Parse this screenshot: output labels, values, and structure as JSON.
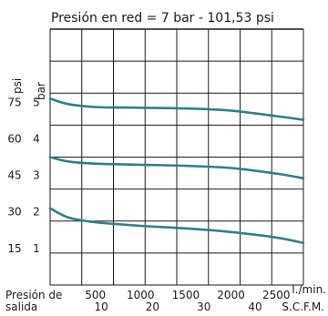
{
  "chart_data": {
    "type": "line",
    "title": "Presión en red = 7 bar - 101,53 psi",
    "xlabel_left": [
      "Presión de",
      "salida"
    ],
    "x_unit_primary": "l./min.",
    "x_unit_secondary": "S.C.F.M.",
    "y_unit_psi": "psi",
    "y_unit_bar": "bar",
    "x_range": [
      0,
      2800
    ],
    "y_range_bar": [
      0,
      7.0
    ],
    "x_ticks_primary": [
      {
        "value": 500,
        "label": "500"
      },
      {
        "value": 1000,
        "label": "1000"
      },
      {
        "value": 1500,
        "label": "1500"
      },
      {
        "value": 2000,
        "label": "2000"
      },
      {
        "value": 2500,
        "label": "2500"
      }
    ],
    "x_ticks_secondary": [
      {
        "value": 283,
        "label": "10"
      },
      {
        "value": 566,
        "label": "20"
      },
      {
        "value": 850,
        "label": "30"
      },
      {
        "value": 1133,
        "label": "40"
      }
    ],
    "y_ticks": [
      {
        "bar": 1,
        "bar_label": "1",
        "psi_label": "15"
      },
      {
        "bar": 2,
        "bar_label": "2",
        "psi_label": "30"
      },
      {
        "bar": 3,
        "bar_label": "3",
        "psi_label": "45"
      },
      {
        "bar": 4,
        "bar_label": "4",
        "psi_label": "60"
      },
      {
        "bar": 5,
        "bar_label": "5",
        "psi_label": "75"
      }
    ],
    "grid": true,
    "line_color": "#2f7f8a",
    "series": [
      {
        "x": [
          0,
          200,
          500,
          1000,
          1500,
          2000,
          2500,
          2800
        ],
        "y": [
          5.1,
          4.95,
          4.87,
          4.85,
          4.83,
          4.77,
          4.62,
          4.52
        ]
      },
      {
        "x": [
          0,
          200,
          500,
          1000,
          1500,
          2000,
          2500,
          2800
        ],
        "y": [
          3.5,
          3.38,
          3.32,
          3.29,
          3.26,
          3.2,
          3.05,
          2.92
        ]
      },
      {
        "x": [
          0,
          200,
          500,
          1000,
          1500,
          2000,
          2500,
          2800
        ],
        "y": [
          2.1,
          1.85,
          1.72,
          1.62,
          1.55,
          1.45,
          1.3,
          1.15
        ]
      }
    ]
  }
}
